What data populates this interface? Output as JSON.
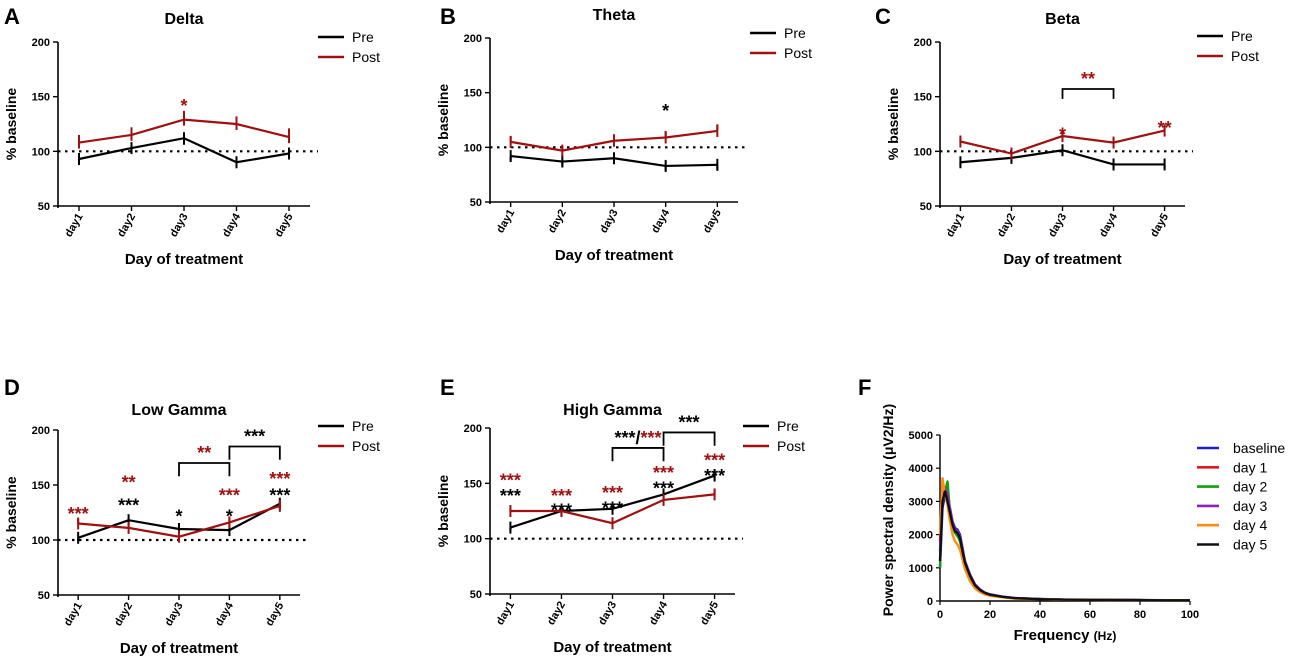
{
  "colors": {
    "pre": "#000000",
    "post": "#a01010"
  },
  "chart_data": [
    {
      "panel": "A",
      "type": "line",
      "title": "Delta",
      "xlabel": "Day of treatment",
      "ylabel": "% baseline",
      "categories": [
        "day1",
        "day2",
        "day3",
        "day4",
        "day5"
      ],
      "ylim": [
        50,
        200
      ],
      "yticks": [
        50,
        100,
        150,
        200
      ],
      "reference_line": 100,
      "legend": [
        "Pre",
        "Post"
      ],
      "series": [
        {
          "name": "Pre",
          "values": [
            93,
            103,
            112,
            90,
            98
          ],
          "errors": [
            5,
            5,
            6,
            5,
            4
          ]
        },
        {
          "name": "Post",
          "values": [
            108,
            115,
            129,
            125,
            113
          ],
          "errors": [
            7,
            7,
            8,
            7,
            8
          ]
        }
      ],
      "annotations": [
        {
          "label": "*",
          "color": "post",
          "at": 2,
          "value": 146
        }
      ],
      "brackets": []
    },
    {
      "panel": "B",
      "type": "line",
      "title": "Theta",
      "xlabel": "Day of treatment",
      "ylabel": "% baseline",
      "categories": [
        "day1",
        "day2",
        "day3",
        "day4",
        "day5"
      ],
      "ylim": [
        50,
        200
      ],
      "yticks": [
        50,
        100,
        150,
        200
      ],
      "reference_line": 100,
      "legend": [
        "Pre",
        "Post"
      ],
      "series": [
        {
          "name": "Pre",
          "values": [
            92,
            87,
            90,
            83,
            84
          ],
          "errors": [
            4,
            4,
            4,
            4,
            4
          ]
        },
        {
          "name": "Post",
          "values": [
            105,
            97,
            106,
            109,
            115
          ],
          "errors": [
            5,
            4,
            6,
            6,
            6
          ]
        }
      ],
      "annotations": [
        {
          "label": "*",
          "color": "pre",
          "at": 3,
          "value": 138
        }
      ],
      "brackets": []
    },
    {
      "panel": "C",
      "type": "line",
      "title": "Beta",
      "xlabel": "Day of treatment",
      "ylabel": "% baseline",
      "categories": [
        "day1",
        "day2",
        "day3",
        "day4",
        "day5"
      ],
      "ylim": [
        50,
        200
      ],
      "yticks": [
        50,
        100,
        150,
        200
      ],
      "reference_line": 100,
      "legend": [
        "Pre",
        "Post"
      ],
      "series": [
        {
          "name": "Pre",
          "values": [
            90,
            94,
            101,
            88,
            88
          ],
          "errors": [
            3,
            3,
            4,
            3,
            3
          ]
        },
        {
          "name": "Post",
          "values": [
            109,
            98,
            114,
            108,
            119
          ],
          "errors": [
            4,
            3,
            5,
            4,
            5
          ]
        }
      ],
      "annotations": [
        {
          "label": "*",
          "color": "post",
          "at": 2,
          "value": 120
        },
        {
          "label": "**",
          "color": "post",
          "at": 4,
          "value": 126
        }
      ],
      "brackets": [
        {
          "from": 2,
          "to": 3,
          "value": 157,
          "drop": 9,
          "label": "**",
          "color": "post"
        }
      ]
    },
    {
      "panel": "D",
      "type": "line",
      "title": "Low Gamma",
      "xlabel": "Day of treatment",
      "ylabel": "% baseline",
      "categories": [
        "day1",
        "day2",
        "day3",
        "day4",
        "day5"
      ],
      "ylim": [
        50,
        200
      ],
      "yticks": [
        50,
        100,
        150,
        200
      ],
      "reference_line": 100,
      "legend": [
        "Pre",
        "Post"
      ],
      "series": [
        {
          "name": "Pre",
          "values": [
            102,
            118,
            110,
            109,
            133
          ],
          "errors": [
            3,
            3,
            3,
            4,
            4
          ]
        },
        {
          "name": "Post",
          "values": [
            115,
            111,
            103,
            116,
            131
          ],
          "errors": [
            4,
            3,
            3,
            4,
            4
          ]
        }
      ],
      "annotations": [
        {
          "label": "***",
          "color": "post",
          "at": 0,
          "value": 128
        },
        {
          "label": "**",
          "color": "post",
          "at": 1,
          "value": 157
        },
        {
          "label": "***",
          "color": "pre",
          "at": 1,
          "value": 136
        },
        {
          "label": "*",
          "color": "pre",
          "at": 2,
          "value": 126
        },
        {
          "label": "***",
          "color": "post",
          "at": 3,
          "value": 145
        },
        {
          "label": "*",
          "color": "pre",
          "at": 3,
          "value": 126
        },
        {
          "label": "***",
          "color": "post",
          "at": 4,
          "value": 160
        },
        {
          "label": "***",
          "color": "pre",
          "at": 4,
          "value": 145
        }
      ],
      "brackets": [
        {
          "from": 2,
          "to": 3,
          "value": 170,
          "drop": 12,
          "label": "**",
          "color": "post"
        },
        {
          "from": 3,
          "to": 4,
          "value": 185,
          "drop": 12,
          "label": "***",
          "color": "pre"
        }
      ]
    },
    {
      "panel": "E",
      "type": "line",
      "title": "High Gamma",
      "xlabel": "Day of treatment",
      "ylabel": "% baseline",
      "categories": [
        "day1",
        "day2",
        "day3",
        "day4",
        "day5"
      ],
      "ylim": [
        50,
        200
      ],
      "yticks": [
        50,
        100,
        150,
        200
      ],
      "reference_line": 100,
      "legend": [
        "Pre",
        "Post"
      ],
      "series": [
        {
          "name": "Pre",
          "values": [
            110,
            125,
            127,
            140,
            157
          ],
          "errors": [
            3,
            3,
            3,
            4,
            4
          ]
        },
        {
          "name": "Post",
          "values": [
            125,
            125,
            114,
            135,
            140
          ],
          "errors": [
            3,
            3,
            3,
            4,
            4
          ]
        }
      ],
      "annotations": [
        {
          "label": "***",
          "color": "post",
          "at": 0,
          "value": 157
        },
        {
          "label": "***",
          "color": "pre",
          "at": 0,
          "value": 143
        },
        {
          "label": "***",
          "color": "post",
          "at": 1,
          "value": 143
        },
        {
          "label": "***",
          "color": "pre",
          "at": 1,
          "value": 130
        },
        {
          "label": "***",
          "color": "post",
          "at": 2,
          "value": 146
        },
        {
          "label": "***",
          "color": "pre",
          "at": 2,
          "value": 132
        },
        {
          "label": "***",
          "color": "post",
          "at": 3,
          "value": 164
        },
        {
          "label": "***",
          "color": "pre",
          "at": 3,
          "value": 150
        },
        {
          "label": "***",
          "color": "post",
          "at": 4,
          "value": 175
        },
        {
          "label": "***",
          "color": "pre",
          "at": 4,
          "value": 161
        }
      ],
      "brackets": [
        {
          "from": 2,
          "to": 3,
          "value": 182,
          "drop": 12,
          "label": "",
          "color": "pre"
        },
        {
          "from": 3,
          "to": 4,
          "value": 196,
          "drop": 12,
          "label": "***",
          "color": "pre"
        }
      ],
      "bracket_label_pre": "***",
      "bracket_label_sep": "/",
      "bracket_label_post": "***"
    },
    {
      "panel": "F",
      "type": "line",
      "xlabel": "Frequency",
      "xunit": "(Hz)",
      "ylabel": "Power spectral density (μV2/Hz)",
      "xlim": [
        0,
        100
      ],
      "ylim": [
        0,
        5000
      ],
      "xticks": [
        0,
        20,
        40,
        60,
        80,
        100
      ],
      "yticks": [
        0,
        1000,
        2000,
        3000,
        4000,
        5000
      ],
      "x": [
        0,
        1,
        2,
        3,
        4,
        5,
        6,
        7,
        8,
        9,
        10,
        12,
        14,
        16,
        18,
        20,
        25,
        30,
        40,
        50,
        60,
        70,
        80,
        90,
        100
      ],
      "series": [
        {
          "name": "baseline",
          "color": "#2020d0",
          "values": [
            1000,
            2800,
            3200,
            3100,
            2800,
            2400,
            2200,
            2150,
            2000,
            1600,
            1200,
            800,
            500,
            350,
            250,
            200,
            130,
            90,
            60,
            40,
            40,
            30,
            30,
            25,
            20
          ]
        },
        {
          "name": "day 1",
          "color": "#e01818",
          "values": [
            1800,
            3300,
            3400,
            3000,
            2600,
            2250,
            2100,
            2000,
            1850,
            1500,
            1150,
            750,
            480,
            330,
            240,
            190,
            125,
            85,
            55,
            40,
            35,
            30,
            25,
            20,
            20
          ]
        },
        {
          "name": "day 2",
          "color": "#10a010",
          "values": [
            1000,
            3500,
            3300,
            3600,
            2700,
            2300,
            2050,
            1950,
            1800,
            1450,
            1100,
            720,
            460,
            320,
            230,
            180,
            120,
            80,
            55,
            40,
            35,
            30,
            25,
            20,
            20
          ]
        },
        {
          "name": "day 3",
          "color": "#9020c0",
          "values": [
            1500,
            3100,
            3400,
            3200,
            2750,
            2350,
            2150,
            2100,
            1950,
            1550,
            1180,
            780,
            490,
            340,
            245,
            195,
            128,
            88,
            58,
            42,
            38,
            30,
            28,
            22,
            20
          ]
        },
        {
          "name": "day 4",
          "color": "#ff8c10",
          "values": [
            2000,
            3700,
            3200,
            2900,
            2400,
            2000,
            1800,
            1700,
            1550,
            1250,
            950,
            600,
            380,
            270,
            200,
            160,
            110,
            75,
            50,
            38,
            32,
            28,
            24,
            20,
            18
          ]
        },
        {
          "name": "day 5",
          "color": "#111111",
          "values": [
            1200,
            3000,
            3300,
            3000,
            2650,
            2300,
            2100,
            2050,
            1900,
            1500,
            1150,
            760,
            470,
            330,
            240,
            190,
            125,
            85,
            56,
            40,
            36,
            30,
            26,
            21,
            19
          ]
        }
      ]
    }
  ]
}
